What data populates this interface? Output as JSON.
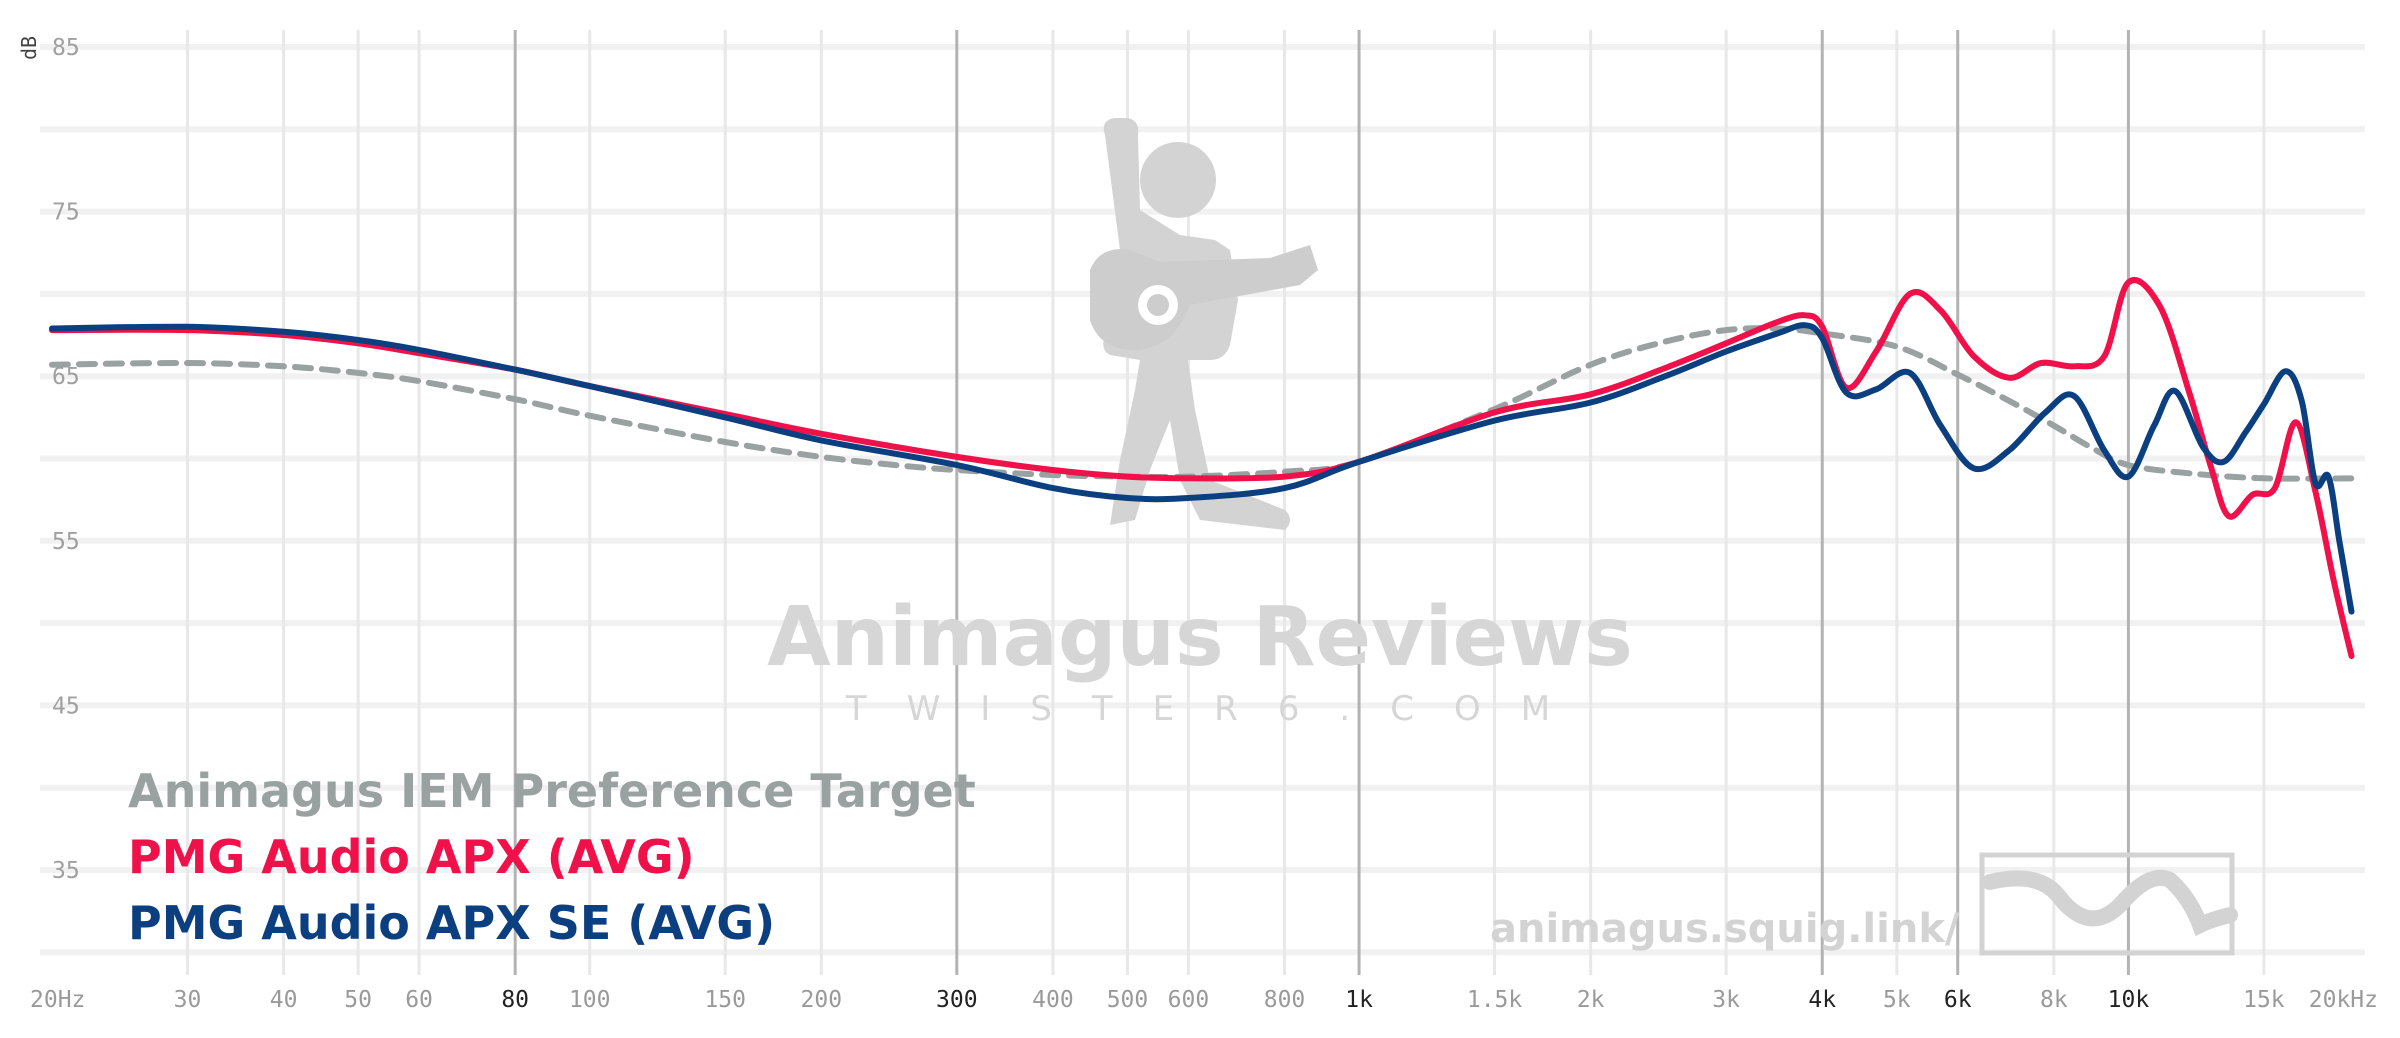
{
  "chart_data": {
    "type": "line",
    "title": "",
    "xlabel": "",
    "ylabel": "dB",
    "x_scale": "log",
    "xlim": [
      20,
      20000
    ],
    "ylim": [
      31,
      85
    ],
    "grid": true,
    "legend_placement": "bottom-left",
    "x_ticks": [
      {
        "value": 20,
        "label": "20Hz",
        "major": false
      },
      {
        "value": 30,
        "label": "30",
        "major": false
      },
      {
        "value": 40,
        "label": "40",
        "major": false
      },
      {
        "value": 50,
        "label": "50",
        "major": false
      },
      {
        "value": 60,
        "label": "60",
        "major": false
      },
      {
        "value": 80,
        "label": "80",
        "major": true
      },
      {
        "value": 100,
        "label": "100",
        "major": false
      },
      {
        "value": 150,
        "label": "150",
        "major": false
      },
      {
        "value": 200,
        "label": "200",
        "major": false
      },
      {
        "value": 300,
        "label": "300",
        "major": true
      },
      {
        "value": 400,
        "label": "400",
        "major": false
      },
      {
        "value": 500,
        "label": "500",
        "major": false
      },
      {
        "value": 600,
        "label": "600",
        "major": false
      },
      {
        "value": 800,
        "label": "800",
        "major": false
      },
      {
        "value": 1000,
        "label": "1k",
        "major": true
      },
      {
        "value": 1500,
        "label": "1.5k",
        "major": false
      },
      {
        "value": 2000,
        "label": "2k",
        "major": false
      },
      {
        "value": 3000,
        "label": "3k",
        "major": false
      },
      {
        "value": 4000,
        "label": "4k",
        "major": true
      },
      {
        "value": 5000,
        "label": "5k",
        "major": false
      },
      {
        "value": 6000,
        "label": "6k",
        "major": true
      },
      {
        "value": 8000,
        "label": "8k",
        "major": false
      },
      {
        "value": 10000,
        "label": "10k",
        "major": true
      },
      {
        "value": 15000,
        "label": "15k",
        "major": false
      },
      {
        "value": 20000,
        "label": "20kHz",
        "major": false
      }
    ],
    "y_ticks": [
      {
        "value": 85,
        "label": "85"
      },
      {
        "value": 75,
        "label": "75"
      },
      {
        "value": 65,
        "label": "65"
      },
      {
        "value": 55,
        "label": "55"
      },
      {
        "value": 45,
        "label": "45"
      },
      {
        "value": 35,
        "label": "35"
      }
    ],
    "series": [
      {
        "name": "Animagus IEM Preference Target",
        "color": "#9aa1a1",
        "dashed": true,
        "x": [
          20,
          30,
          40,
          50,
          60,
          80,
          100,
          150,
          200,
          250,
          300,
          400,
          500,
          600,
          800,
          1000,
          1500,
          2000,
          2500,
          3000,
          3500,
          4000,
          5000,
          6000,
          7000,
          8000,
          9000,
          10000,
          12000,
          15000,
          20000
        ],
        "y": [
          65.7,
          65.8,
          65.6,
          65.2,
          64.7,
          63.6,
          62.6,
          61.0,
          60.1,
          59.6,
          59.3,
          59.0,
          58.9,
          58.9,
          59.2,
          59.8,
          63.0,
          65.7,
          67.1,
          67.8,
          67.9,
          67.6,
          66.8,
          65.1,
          63.5,
          62.0,
          60.6,
          59.6,
          59.1,
          58.8,
          58.8
        ]
      },
      {
        "name": "PMG Audio APX (AVG)",
        "color": "#f0104a",
        "dashed": false,
        "x": [
          20,
          30,
          40,
          50,
          60,
          80,
          100,
          150,
          200,
          300,
          400,
          500,
          600,
          800,
          1000,
          1500,
          2000,
          2500,
          3000,
          3500,
          3800,
          4000,
          4300,
          4700,
          5200,
          5700,
          6300,
          7000,
          7700,
          8500,
          9300,
          10000,
          11000,
          12000,
          12800,
          13500,
          14500,
          15500,
          16500,
          17500,
          18500,
          19500
        ],
        "y": [
          67.8,
          67.8,
          67.5,
          67.0,
          66.4,
          65.4,
          64.4,
          62.7,
          61.5,
          60.1,
          59.3,
          58.9,
          58.8,
          58.9,
          59.8,
          62.8,
          63.9,
          65.5,
          67.0,
          68.3,
          68.7,
          68.0,
          64.3,
          66.5,
          70.0,
          69.0,
          66.2,
          64.9,
          65.8,
          65.6,
          66.2,
          70.7,
          69.2,
          64.0,
          59.5,
          56.5,
          57.8,
          58.2,
          62.2,
          58.0,
          52.5,
          48.0
        ]
      },
      {
        "name": "PMG Audio APX SE (AVG)",
        "color": "#0b3f80",
        "dashed": false,
        "x": [
          20,
          30,
          40,
          50,
          60,
          80,
          100,
          150,
          200,
          300,
          400,
          500,
          600,
          800,
          1000,
          1500,
          2000,
          2500,
          3000,
          3500,
          3800,
          4000,
          4300,
          4700,
          5200,
          5700,
          6300,
          7000,
          7800,
          8500,
          9300,
          10000,
          10800,
          11500,
          12500,
          13300,
          14200,
          15000,
          16000,
          16800,
          17500,
          18200,
          18800,
          19500
        ],
        "y": [
          67.9,
          68.0,
          67.7,
          67.2,
          66.6,
          65.4,
          64.4,
          62.5,
          61.1,
          59.6,
          58.2,
          57.6,
          57.6,
          58.2,
          59.8,
          62.3,
          63.4,
          65.0,
          66.5,
          67.6,
          68.1,
          67.3,
          64.0,
          64.2,
          65.2,
          62.0,
          59.4,
          60.5,
          62.8,
          63.8,
          60.5,
          58.9,
          62.0,
          64.1,
          60.7,
          59.8,
          61.6,
          63.3,
          65.3,
          63.5,
          58.5,
          58.9,
          55.0,
          50.7
        ]
      }
    ]
  },
  "watermark": {
    "title": "Animagus Reviews",
    "subtitle": "TWISTER6.COM",
    "url": "animagus.squig.link/",
    "logo_icon": "guitar-player-icon",
    "badge_icon": "squig-logo-icon"
  }
}
